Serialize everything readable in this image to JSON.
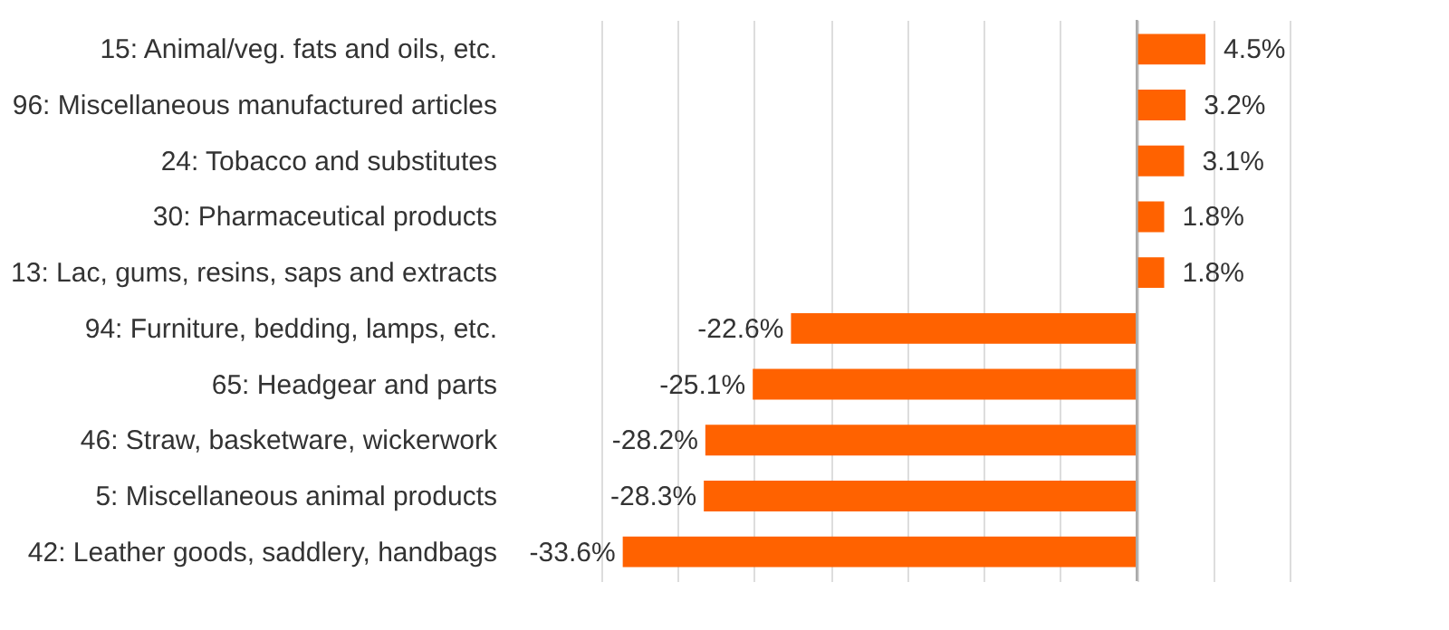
{
  "chart_data": {
    "type": "bar",
    "orientation": "horizontal",
    "categories": [
      "15: Animal/veg. fats and oils, etc.",
      "96: Miscellaneous manufactured articles",
      "24: Tobacco and substitutes",
      "30: Pharmaceutical products",
      "13: Lac, gums, resins, saps and extracts",
      "94: Furniture, bedding, lamps, etc.",
      "65: Headgear and parts",
      "46: Straw, basketware, wickerwork",
      "5: Miscellaneous animal products",
      "42: Leather goods, saddlery, handbags"
    ],
    "values": [
      4.5,
      3.2,
      3.1,
      1.8,
      1.8,
      -22.6,
      -25.1,
      -28.2,
      -28.3,
      -33.6
    ],
    "value_labels": [
      "4.5%",
      "3.2%",
      "3.1%",
      "1.8%",
      "1.8%",
      "-22.6%",
      "-25.1%",
      "-28.2%",
      "-28.3%",
      "-33.6%"
    ],
    "color": "#ff6200",
    "xlim": [
      -35,
      10
    ],
    "xticks": [
      {
        "value": -35,
        "label": null
      },
      {
        "value": -30,
        "label": null
      },
      {
        "value": -25,
        "label": null
      },
      {
        "value": -20,
        "label": null
      },
      {
        "value": -15,
        "label": null
      },
      {
        "value": -10,
        "label": null
      },
      {
        "value": -5,
        "label": null
      },
      {
        "value": 0,
        "label": null
      },
      {
        "value": 5,
        "label": null
      },
      {
        "value": 10,
        "label": null
      }
    ],
    "grid": "x",
    "tick_labels": "y"
  }
}
